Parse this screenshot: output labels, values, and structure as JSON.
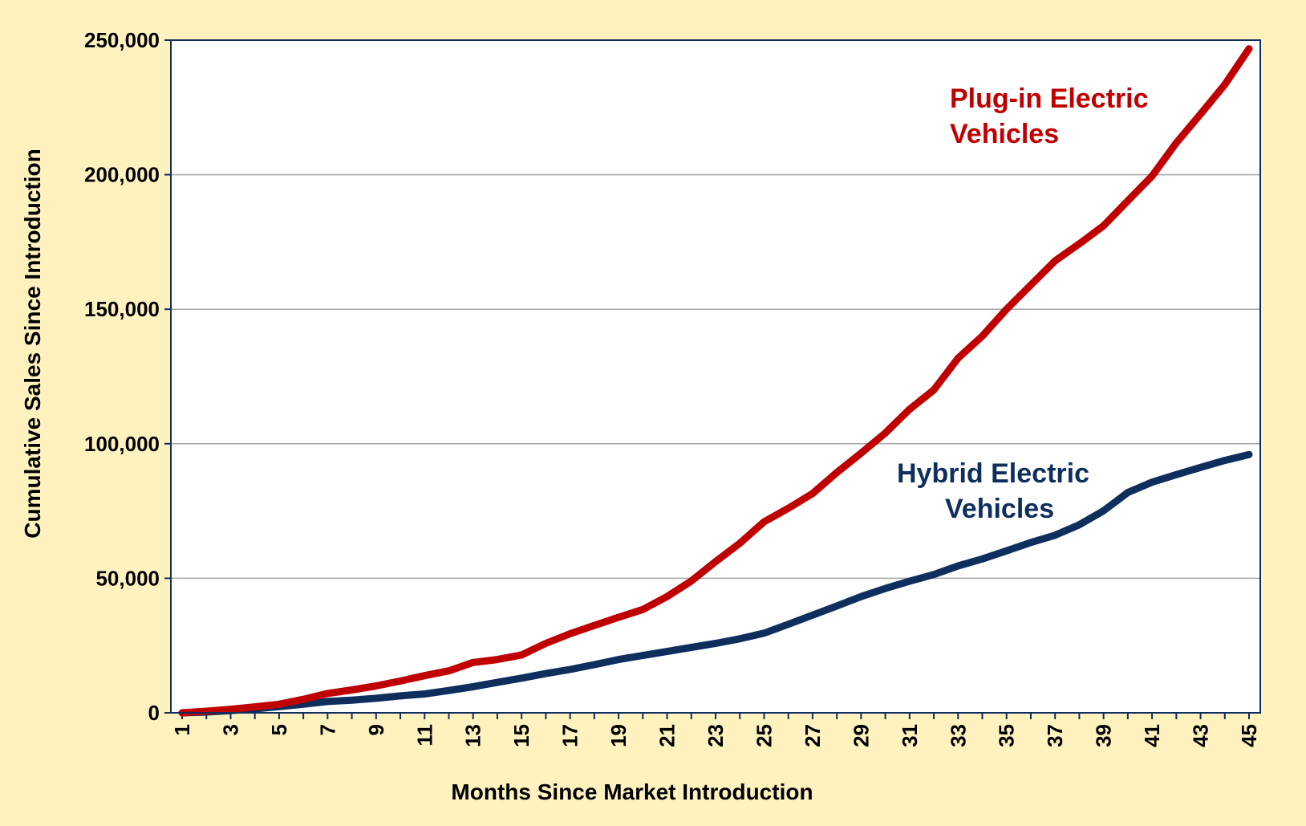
{
  "chart_data": {
    "type": "line",
    "xlabel": "Months Since Market Introduction",
    "ylabel": "Cumulative Sales Since Introduction",
    "x": [
      1,
      2,
      3,
      4,
      5,
      6,
      7,
      8,
      9,
      10,
      11,
      12,
      13,
      14,
      15,
      16,
      17,
      18,
      19,
      20,
      21,
      22,
      23,
      24,
      25,
      26,
      27,
      28,
      29,
      30,
      31,
      32,
      33,
      34,
      35,
      36,
      37,
      38,
      39,
      40,
      41,
      42,
      43,
      44,
      45
    ],
    "x_tick_labels": [
      "1",
      "3",
      "5",
      "7",
      "9",
      "11",
      "13",
      "15",
      "17",
      "19",
      "21",
      "23",
      "25",
      "27",
      "29",
      "31",
      "33",
      "35",
      "37",
      "39",
      "41",
      "43",
      "45"
    ],
    "xlim": [
      1,
      45
    ],
    "ylim": [
      0,
      250000
    ],
    "y_tick_labels": [
      "0",
      "50,000",
      "100,000",
      "150,000",
      "200,000",
      "250,000"
    ],
    "y_ticks": [
      0,
      50000,
      100000,
      150000,
      200000,
      250000
    ],
    "grid": true,
    "series": [
      {
        "name": "Plug-in Electric Vehicles",
        "label_lines": [
          "Plug-in Electric",
          "Vehicles"
        ],
        "color": "#C00000",
        "values": [
          0,
          600,
          1300,
          2200,
          3200,
          5000,
          7200,
          8500,
          10000,
          11800,
          13800,
          15600,
          18700,
          19800,
          21500,
          25800,
          29400,
          32500,
          35500,
          38400,
          43200,
          49000,
          56200,
          63000,
          71000,
          76000,
          81500,
          89300,
          96500,
          104000,
          112800,
          120000,
          131800,
          140000,
          150000,
          159000,
          168000,
          174300,
          181000,
          190300,
          199500,
          211800,
          222500,
          233500,
          246800
        ]
      },
      {
        "name": "Hybrid Electric Vehicles",
        "label_lines": [
          "Hybrid Electric",
          "Vehicles"
        ],
        "color": "#0E2F5E",
        "values": [
          0,
          300,
          800,
          1500,
          2300,
          3200,
          4200,
          4700,
          5400,
          6300,
          7000,
          8300,
          9700,
          11300,
          12900,
          14600,
          16100,
          17900,
          19800,
          21300,
          22800,
          24300,
          25800,
          27500,
          29600,
          32900,
          36300,
          39700,
          43200,
          46200,
          48900,
          51400,
          54600,
          57200,
          60200,
          63300,
          66000,
          69900,
          75100,
          81900,
          85700,
          88500,
          91200,
          93800,
          96000
        ]
      }
    ]
  }
}
